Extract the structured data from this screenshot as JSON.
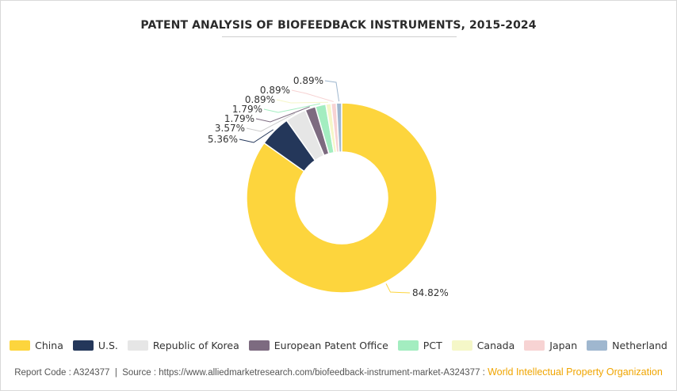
{
  "title": "PATENT ANALYSIS OF BIOFEEDBACK INSTRUMENTS, 2015-2024",
  "chart_data": {
    "type": "pie",
    "donut": true,
    "title": "PATENT ANALYSIS OF BIOFEEDBACK INSTRUMENTS, 2015-2024",
    "categories": [
      "China",
      "U.S.",
      "Republic of Korea",
      "European Patent Office",
      "PCT",
      "Canada",
      "Japan",
      "Netherland"
    ],
    "values": [
      84.82,
      5.36,
      3.57,
      1.79,
      1.79,
      0.89,
      0.89,
      0.89
    ],
    "labels": [
      "84.82%",
      "5.36%",
      "3.57%",
      "1.79%",
      "1.79%",
      "0.89%",
      "0.89%",
      "0.89%"
    ],
    "colors": [
      "#fdd53d",
      "#24375a",
      "#e6e6e6",
      "#7d6b80",
      "#a3edc0",
      "#f5f7c8",
      "#f7d3d3",
      "#9fb7cf"
    ],
    "legend_position": "bottom"
  },
  "footer": {
    "report_code": "Report Code : A324377",
    "separator": "|",
    "source": "Source : https://www.alliedmarketresearch.com/biofeedback-instrument-market-A324377 :",
    "source_org": "World Intellectual Property Organization"
  }
}
